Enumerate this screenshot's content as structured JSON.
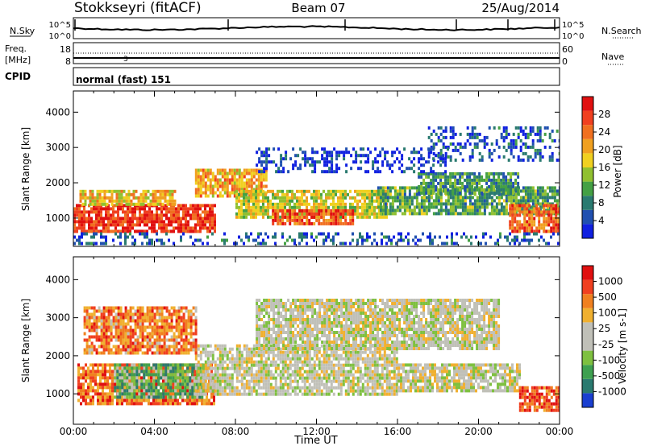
{
  "header": {
    "station": "Stokkseyri (fitACF)",
    "beam": "Beam 07",
    "date": "25/Aug/2014"
  },
  "strips": {
    "nsky_label": "N.Sky",
    "nsky_top": "10^5",
    "nsky_bottom": "10^0",
    "nsearch_label": "N.Search",
    "nsearch_top": "10^5",
    "nsearch_bottom": "10^0",
    "freq_label": "Freq.",
    "freq_unit": "[MHz]",
    "freq_top": "18",
    "freq_bottom": "8",
    "nave_label": "Nave",
    "nave_top": "60",
    "nave_bottom": "0",
    "cpid_label": "CPID",
    "cpid_value": "normal (fast) 151",
    "freq_marker": "3"
  },
  "chart_data": [
    {
      "type": "heatmap",
      "panel": "power",
      "ylabel": "Slant Range [km]",
      "xlabel": "",
      "yticks": [
        "1000",
        "2000",
        "3000",
        "4000"
      ],
      "ylim": [
        200,
        4600
      ],
      "colorbar": {
        "label": "Power [dB]",
        "ticks": [
          "4",
          "8",
          "12",
          "16",
          "20",
          "24",
          "28"
        ],
        "colors": [
          "#1020e0",
          "#2050b0",
          "#2a7a70",
          "#44a044",
          "#90c030",
          "#f0d020",
          "#f0a020",
          "#f07020",
          "#f04020",
          "#e01010"
        ]
      },
      "bands": [
        {
          "t0": 0.0,
          "t1": 7.0,
          "r0": 600,
          "r1": 1400,
          "level": 0.88
        },
        {
          "t0": 0.3,
          "t1": 5.0,
          "r0": 1400,
          "r1": 1800,
          "level": 0.6
        },
        {
          "t0": 6.0,
          "t1": 9.5,
          "r0": 1600,
          "r1": 2400,
          "level": 0.65
        },
        {
          "t0": 8.0,
          "t1": 15.5,
          "r0": 1000,
          "r1": 1800,
          "level": 0.5
        },
        {
          "t0": 9.8,
          "t1": 13.8,
          "r0": 850,
          "r1": 1250,
          "level": 0.82
        },
        {
          "t0": 15.0,
          "t1": 24.0,
          "r0": 1100,
          "r1": 1900,
          "level": 0.35
        },
        {
          "t0": 17.0,
          "t1": 22.0,
          "r0": 1700,
          "r1": 2300,
          "level": 0.3
        },
        {
          "t0": 21.5,
          "t1": 24.0,
          "r0": 600,
          "r1": 1400,
          "level": 0.78
        },
        {
          "t0": 17.5,
          "t1": 24.0,
          "r0": 2600,
          "r1": 3600,
          "level": 0.15
        },
        {
          "t0": 9.0,
          "t1": 18.5,
          "r0": 2300,
          "r1": 3000,
          "level": 0.1
        },
        {
          "t0": 0.0,
          "t1": 24.0,
          "r0": 250,
          "r1": 600,
          "level": 0.15
        }
      ]
    },
    {
      "type": "heatmap",
      "panel": "velocity",
      "ylabel": "Slant Range [km]",
      "xlabel": "Time UT",
      "yticks": [
        "1000",
        "2000",
        "3000",
        "4000"
      ],
      "xticks": [
        "00:00",
        "04:00",
        "08:00",
        "12:00",
        "16:00",
        "20:00",
        "00:00"
      ],
      "xlim": [
        0,
        24
      ],
      "ylim": [
        200,
        4600
      ],
      "colorbar": {
        "label": "Velocity [m s-1]",
        "ticks": [
          "1000",
          "500",
          "100",
          "25",
          "-25",
          "-100",
          "-500",
          "-1000"
        ],
        "colors": [
          "#1a3fd0",
          "#2a7a70",
          "#3ea050",
          "#7ec040",
          "#c0c0b8",
          "#c0c0b8",
          "#f0b030",
          "#f08020",
          "#f04020",
          "#e01010"
        ]
      },
      "bands": [
        {
          "t0": 0.2,
          "t1": 7.0,
          "r0": 700,
          "r1": 1800,
          "level": 0.78
        },
        {
          "t0": 2.0,
          "t1": 6.5,
          "r0": 900,
          "r1": 1800,
          "level": 0.3
        },
        {
          "t0": 6.0,
          "t1": 16.0,
          "r0": 1000,
          "r1": 2300,
          "level": 0.5
        },
        {
          "t0": 16.0,
          "t1": 22.0,
          "r0": 1100,
          "r1": 1800,
          "level": 0.5
        },
        {
          "t0": 22.0,
          "t1": 24.0,
          "r0": 600,
          "r1": 1200,
          "level": 0.85
        },
        {
          "t0": 0.5,
          "t1": 6.0,
          "r0": 2100,
          "r1": 3300,
          "level": 0.75
        },
        {
          "t0": 9.0,
          "t1": 21.0,
          "r0": 2200,
          "r1": 3500,
          "level": 0.5
        }
      ]
    }
  ]
}
